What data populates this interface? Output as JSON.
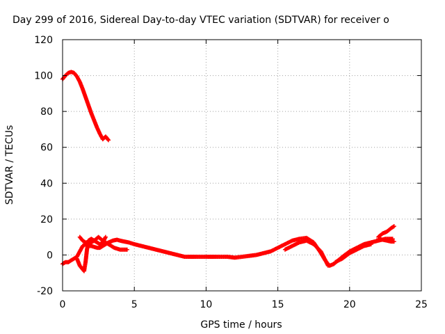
{
  "chart_data": {
    "type": "scatter",
    "title": "Day 299 of 2016, Sidereal Day-to-day VTEC variation (SDTVAR) for receiver o",
    "xlabel": "GPS time / hours",
    "ylabel": "SDTVAR / TECUs",
    "xlim": [
      0,
      25
    ],
    "ylim": [
      -20,
      120
    ],
    "xticks": [
      0,
      5,
      10,
      15,
      20,
      25
    ],
    "yticks": [
      -20,
      0,
      20,
      40,
      60,
      80,
      100,
      120
    ],
    "grid": true,
    "marker": "plus",
    "color": "#ff0000",
    "series": [
      {
        "values_x": [
          0.0,
          0.2,
          0.4,
          0.6,
          0.8,
          1.0,
          1.2,
          1.4,
          1.6,
          1.8,
          2.0,
          2.2,
          2.4,
          2.6,
          2.8,
          3.0,
          3.2
        ],
        "values_y": [
          98,
          100,
          101.5,
          102,
          101.5,
          99.5,
          96.5,
          92.5,
          88,
          83.5,
          79,
          75,
          71,
          67.5,
          64.5,
          66,
          64
        ]
      },
      {
        "values_x": [
          0.0,
          0.2,
          0.4,
          0.6,
          0.8,
          1.0,
          1.2,
          1.4,
          1.6,
          1.8,
          2.0,
          2.2,
          2.4,
          2.6,
          2.8,
          3.0,
          3.2,
          3.5,
          3.8,
          4.0,
          4.3,
          4.6,
          5.0,
          5.5,
          6.0,
          6.5,
          7.0,
          7.5,
          8.0,
          8.5,
          9.0,
          9.5,
          10.0,
          10.5,
          11.0,
          11.5,
          12.0,
          12.5,
          13.0,
          13.5,
          14.0,
          14.5,
          15.0,
          15.5,
          16.0,
          16.5,
          17.0,
          17.5,
          18.0,
          18.3,
          18.6,
          18.9,
          19.2,
          19.5,
          20.0,
          20.5,
          21.0,
          21.5,
          22.0,
          22.5,
          23.0
        ],
        "values_y": [
          -5,
          -4,
          -4,
          -3,
          -2,
          -1,
          2,
          5,
          6,
          5,
          5,
          4.5,
          4,
          4,
          5,
          6,
          7,
          8,
          8.5,
          8,
          7.5,
          7,
          6,
          5,
          4,
          3,
          2,
          1,
          0,
          -1,
          -1,
          -1,
          -1,
          -1,
          -1,
          -1,
          -1.5,
          -1,
          -0.5,
          0,
          1,
          2,
          4,
          6,
          8,
          9,
          9.5,
          7,
          1,
          -3,
          -6,
          -5,
          -3,
          -1,
          2,
          4,
          6,
          7,
          8,
          9,
          9
        ]
      },
      {
        "values_x": [
          1.0,
          1.1,
          1.2,
          1.3,
          1.4,
          1.5,
          1.6,
          1.7,
          1.8,
          2.0,
          2.2,
          2.4,
          2.6,
          2.8,
          3.0
        ],
        "values_y": [
          -2,
          -4,
          -6,
          -7,
          -8,
          -9,
          -4,
          3,
          8,
          9,
          8,
          7,
          6,
          7,
          10
        ]
      },
      {
        "values_x": [
          1.2,
          1.4,
          1.6,
          1.8,
          2.0,
          2.2,
          2.5,
          2.8,
          3.2,
          3.6,
          4.0,
          4.5
        ],
        "values_y": [
          10,
          8,
          7,
          6,
          7,
          8,
          10,
          8,
          6,
          4,
          3,
          3
        ]
      },
      {
        "values_x": [
          15.5,
          16.0,
          16.5,
          17.0,
          17.5,
          18.0,
          18.5
        ],
        "values_y": [
          3,
          5,
          7,
          8,
          6,
          2,
          -6
        ]
      },
      {
        "values_x": [
          22.0,
          22.3,
          22.6,
          22.9,
          23.1
        ],
        "values_y": [
          10,
          12,
          13,
          15,
          16
        ]
      },
      {
        "values_x": [
          22.0,
          22.3,
          22.6,
          22.9,
          23.1
        ],
        "values_y": [
          9,
          8.5,
          8,
          7.5,
          7.5
        ]
      },
      {
        "values_x": [
          19.0,
          19.5,
          20.0,
          20.5,
          21.0,
          21.5
        ],
        "values_y": [
          -4,
          -2,
          1,
          3,
          5,
          6
        ]
      }
    ]
  }
}
